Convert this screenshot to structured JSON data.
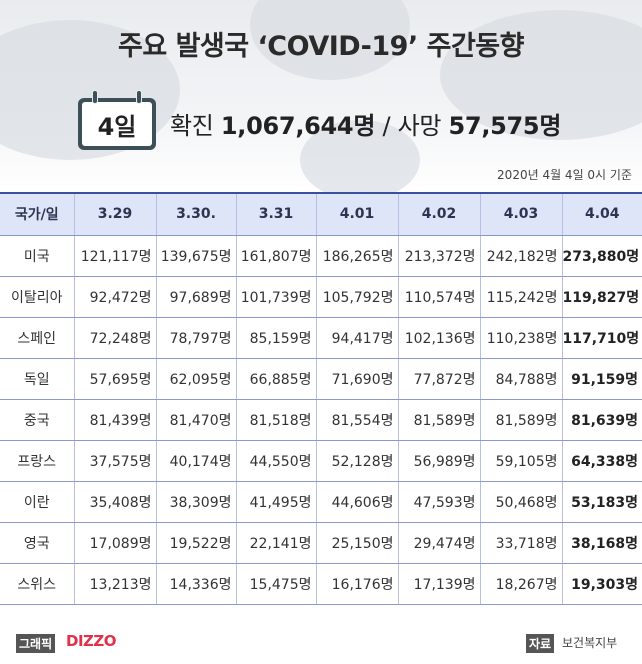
{
  "header": {
    "title": "주요 발생국 ‘COVID-19’ 주간동향",
    "day_badge": "4일",
    "confirmed_label": "확진",
    "confirmed_value": "1,067,644명",
    "separator": "/",
    "deaths_label": "사망",
    "deaths_value": "57,575명",
    "as_of": "2020년 4월 4일 0시 기준"
  },
  "table": {
    "columns": [
      "국가/일",
      "3.29",
      "3.30.",
      "3.31",
      "4.01",
      "4.02",
      "4.03",
      "4.04"
    ],
    "rows": [
      {
        "country": "미국",
        "values": [
          "121,117명",
          "139,675명",
          "161,807명",
          "186,265명",
          "213,372명",
          "242,182명",
          "273,880명"
        ]
      },
      {
        "country": "이탈리아",
        "values": [
          "92,472명",
          "97,689명",
          "101,739명",
          "105,792명",
          "110,574명",
          "115,242명",
          "119,827명"
        ]
      },
      {
        "country": "스페인",
        "values": [
          "72,248명",
          "78,797명",
          "85,159명",
          "94,417명",
          "102,136명",
          "110,238명",
          "117,710명"
        ]
      },
      {
        "country": "독일",
        "values": [
          "57,695명",
          "62,095명",
          "66,885명",
          "71,690명",
          "77,872명",
          "84,788명",
          "91,159명"
        ]
      },
      {
        "country": "중국",
        "values": [
          "81,439명",
          "81,470명",
          "81,518명",
          "81,554명",
          "81,589명",
          "81,589명",
          "81,639명"
        ]
      },
      {
        "country": "프랑스",
        "values": [
          "37,575명",
          "40,174명",
          "44,550명",
          "52,128명",
          "56,989명",
          "59,105명",
          "64,338명"
        ]
      },
      {
        "country": "이란",
        "values": [
          "35,408명",
          "38,309명",
          "41,495명",
          "44,606명",
          "47,593명",
          "50,468명",
          "53,183명"
        ]
      },
      {
        "country": "영국",
        "values": [
          "17,089명",
          "19,522명",
          "22,141명",
          "25,150명",
          "29,474명",
          "33,718명",
          "38,168명"
        ]
      },
      {
        "country": "스위스",
        "values": [
          "13,213명",
          "14,336명",
          "15,475명",
          "16,176명",
          "17,139명",
          "18,267명",
          "19,303명"
        ]
      }
    ]
  },
  "footer": {
    "credit_label": "그래픽",
    "credit_logo": "DIZZO",
    "source_label": "자료",
    "source_text": "보건복지부"
  },
  "colors": {
    "header_bg": "#3a4fa0",
    "header_cell_bg": "#dfe5f8",
    "calendar": "#3d4f57",
    "logo_red": "#e0314b"
  }
}
